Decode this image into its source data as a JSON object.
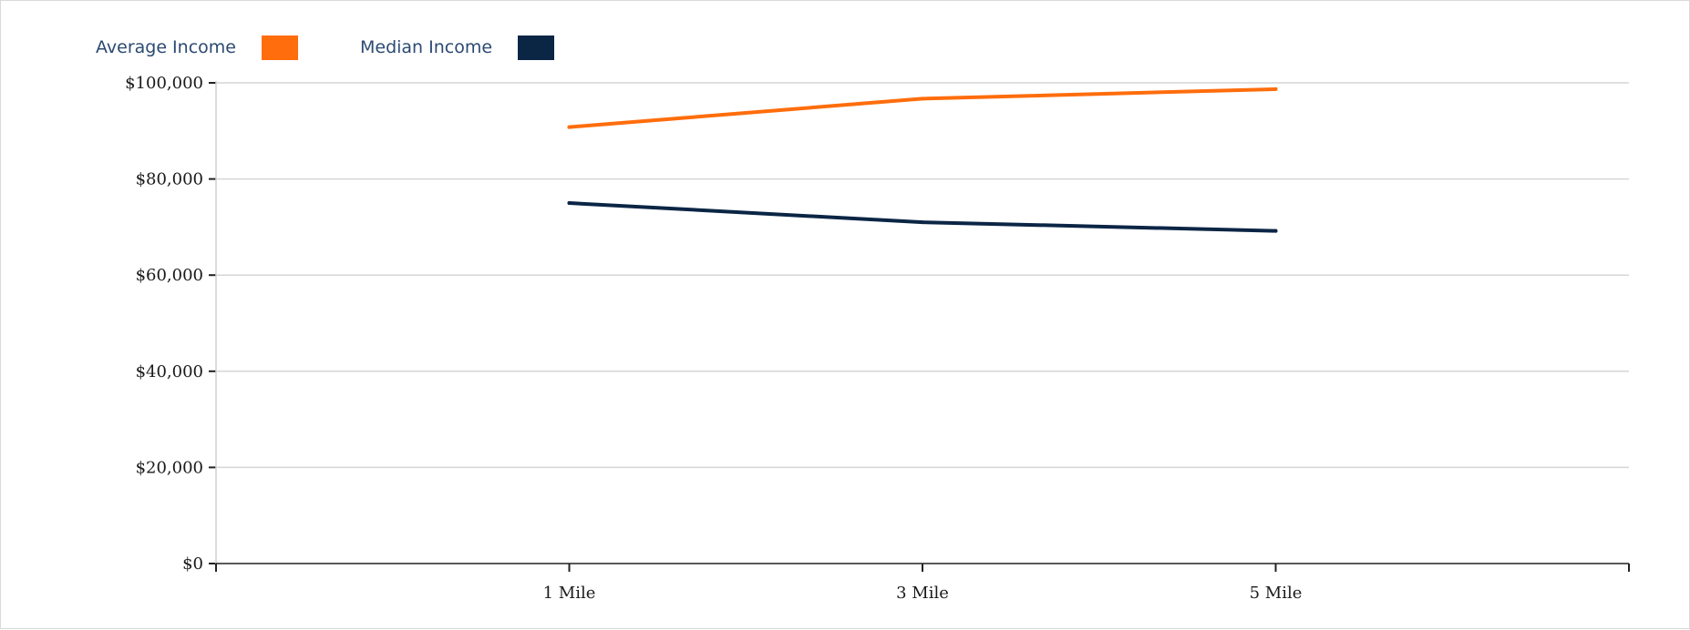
{
  "chart_data": {
    "type": "line",
    "title": "",
    "xlabel": "",
    "ylabel": "",
    "categories": [
      "1 Mile",
      "3 Mile",
      "5 Mile"
    ],
    "x_domain_padding": 1,
    "ylim": [
      0,
      100000
    ],
    "y_ticks": [
      0,
      20000,
      40000,
      60000,
      80000,
      100000
    ],
    "y_tick_labels": [
      "$0",
      "$20,000",
      "$40,000",
      "$60,000",
      "$80,000",
      "$100,000"
    ],
    "grid": true,
    "legend_position": "top-left",
    "series": [
      {
        "name": "Average Income",
        "color": "#ff6d0c",
        "values": [
          90800,
          96700,
          98700
        ]
      },
      {
        "name": "Median Income",
        "color": "#0b2545",
        "values": [
          75000,
          71000,
          69200
        ]
      }
    ]
  }
}
